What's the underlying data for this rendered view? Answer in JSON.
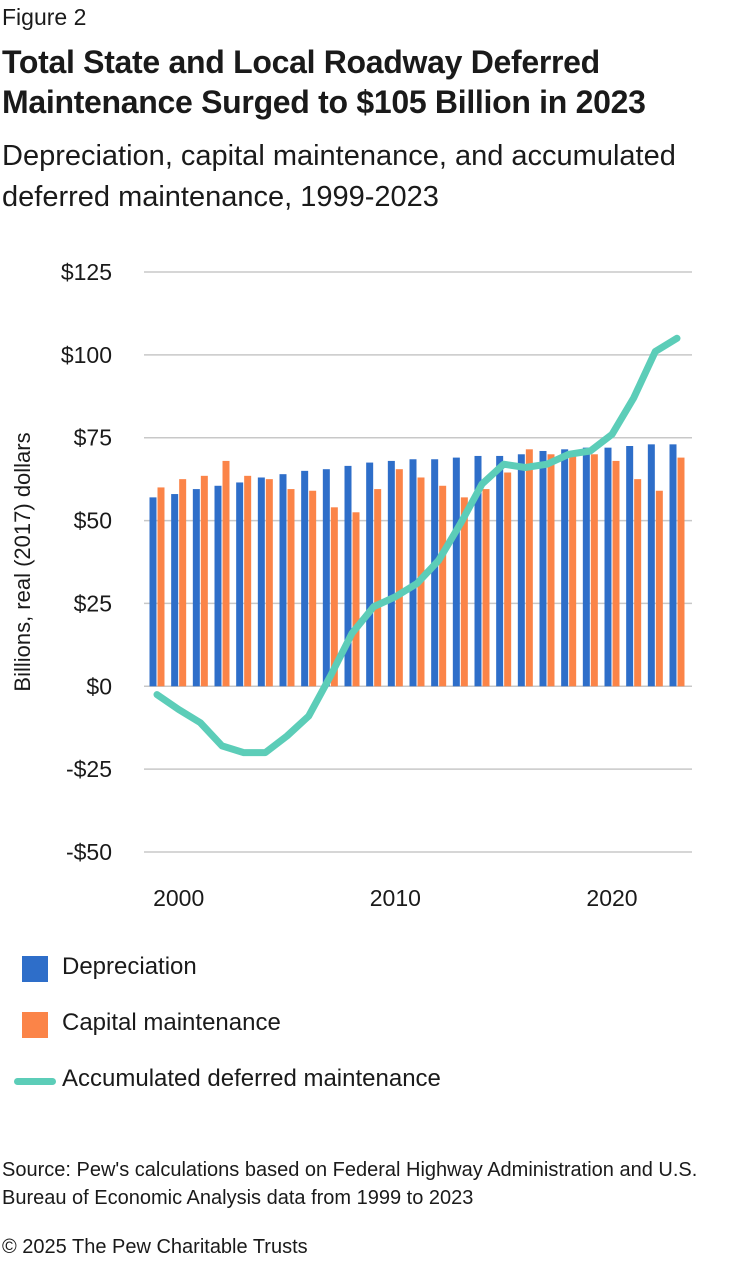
{
  "figure_label": "Figure 2",
  "footer": {
    "source": "Source: Pew's calculations based on Federal Highway Administration and U.S. Bureau of Economic Analysis data from 1999 to 2023",
    "copyright": "© 2025 The Pew Charitable Trusts"
  },
  "colors": {
    "depreciation": "#2e6ec9",
    "capital_maintenance": "#fb8448",
    "deferred": "#5ccdb8",
    "grid": "#c8c8c8"
  },
  "chart_data": {
    "type": "bar",
    "title": "Total State and Local Roadway Deferred Maintenance Surged to $105 Billion in 2023",
    "subtitle": "Depreciation, capital maintenance, and accumulated deferred maintenance, 1999-2023",
    "ylabel": "Billions, real (2017) dollars",
    "xlabel": "",
    "ylim": [
      -50,
      125
    ],
    "yticks": [
      125,
      100,
      75,
      50,
      25,
      0,
      -25,
      -50
    ],
    "ytick_labels": [
      "$125",
      "$100",
      "$75",
      "$50",
      "$25",
      "$0",
      "-$25",
      "-$50"
    ],
    "xticks": [
      2000,
      2010,
      2020
    ],
    "xtick_labels": [
      "2000",
      "2010",
      "2020"
    ],
    "grid": "horizontal",
    "legend_position": "bottom",
    "x": [
      1999,
      2000,
      2001,
      2002,
      2003,
      2004,
      2005,
      2006,
      2007,
      2008,
      2009,
      2010,
      2011,
      2012,
      2013,
      2014,
      2015,
      2016,
      2017,
      2018,
      2019,
      2020,
      2021,
      2022,
      2023
    ],
    "series": [
      {
        "name": "Depreciation",
        "kind": "bar",
        "values": [
          57,
          58,
          59.5,
          60.5,
          61.5,
          63,
          64,
          65,
          65.5,
          66.5,
          67.5,
          68,
          68.5,
          68.5,
          69,
          69.5,
          69.5,
          70,
          71,
          71.5,
          72,
          72,
          72.5,
          73,
          73
        ]
      },
      {
        "name": "Capital maintenance",
        "kind": "bar",
        "values": [
          60,
          62.5,
          63.5,
          68,
          63.5,
          62.5,
          59.5,
          59,
          54,
          52.5,
          59.5,
          65.5,
          63,
          60.5,
          57,
          59.5,
          64.5,
          71.5,
          70,
          70.5,
          70,
          68,
          62.5,
          59,
          69
        ]
      },
      {
        "name": "Accumulated deferred maintenance",
        "kind": "line",
        "values": [
          -2.5,
          -7,
          -11,
          -18,
          -20,
          -20,
          -15,
          -9,
          3,
          16,
          24,
          27,
          31,
          38,
          49,
          61,
          67,
          66,
          67,
          70,
          71,
          76,
          87,
          101,
          105
        ]
      }
    ]
  }
}
